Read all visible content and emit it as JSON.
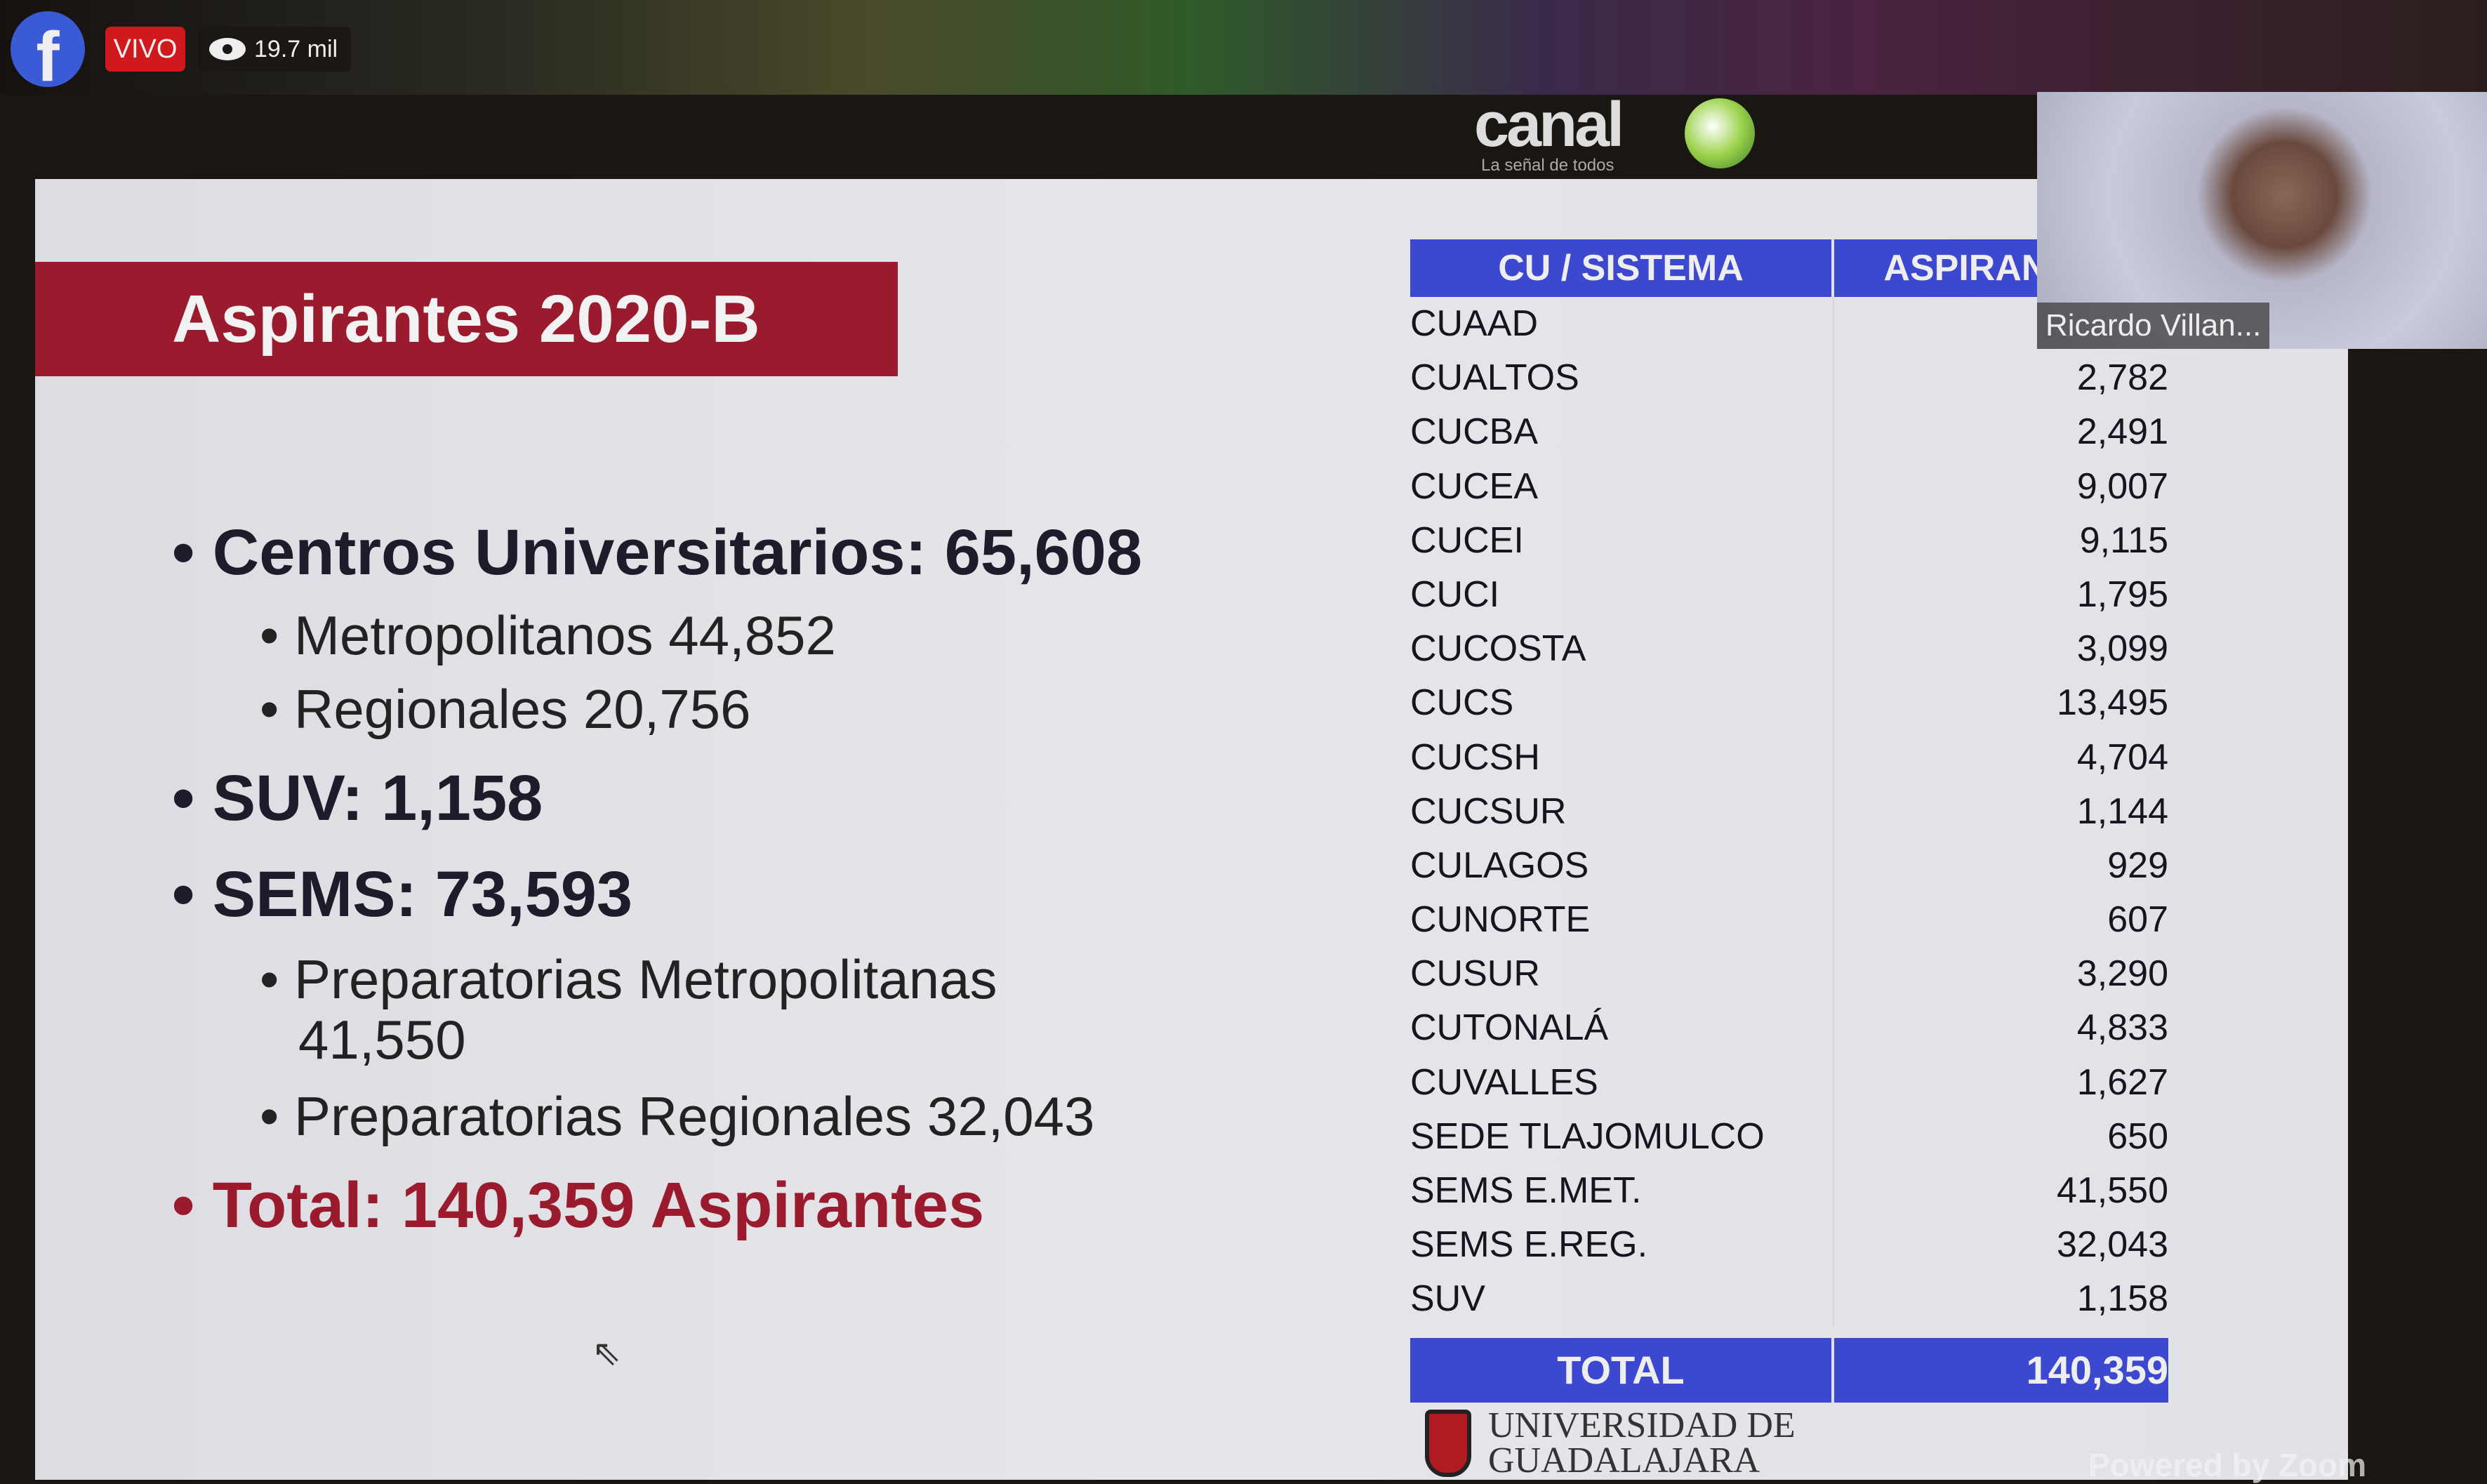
{
  "stream": {
    "live_label": "VIVO",
    "viewers": "19.7 mil",
    "facebook_letter": "f"
  },
  "slide": {
    "title": "Aspirantes 2020-B",
    "bullets": {
      "cu": "Centros Universitarios: 65,608",
      "metro": "Metropolitanos 44,852",
      "regio": "Regionales 20,756",
      "suv": "SUV: 1,158",
      "sems": "SEMS: 73,593",
      "prep_metro": "Preparatorias Metropolitanas",
      "prep_metro_val": "41,550",
      "prep_regio": "Preparatorias Regionales 32,043",
      "total": "Total: 140,359 Aspirantes"
    },
    "table": {
      "headers": [
        "CU / SISTEMA",
        "ASPIRANTES"
      ],
      "rows": [
        [
          "CUAAD",
          ""
        ],
        [
          "CUALTOS",
          "2,782"
        ],
        [
          "CUCBA",
          "2,491"
        ],
        [
          "CUCEA",
          "9,007"
        ],
        [
          "CUCEI",
          "9,115"
        ],
        [
          "CUCI",
          "1,795"
        ],
        [
          "CUCOSTA",
          "3,099"
        ],
        [
          "CUCS",
          "13,495"
        ],
        [
          "CUCSH",
          "4,704"
        ],
        [
          "CUCSUR",
          "1,144"
        ],
        [
          "CULAGOS",
          "929"
        ],
        [
          "CUNORTE",
          "607"
        ],
        [
          "CUSUR",
          "3,290"
        ],
        [
          "CUTONALÁ",
          "4,833"
        ],
        [
          "CUVALLES",
          "1,627"
        ],
        [
          "SEDE TLAJOMULCO",
          "650"
        ],
        [
          "SEMS E.MET.",
          "41,550"
        ],
        [
          "SEMS E.REG.",
          "32,043"
        ],
        [
          "SUV",
          "1,158"
        ]
      ],
      "total_label": "TOTAL",
      "total_value": "140,359"
    }
  },
  "overlays": {
    "canal": "canal",
    "canal_tag": "La señal de todos",
    "udg": "UNIVERSIDAD DE GUADALAJARA",
    "participant": "Ricardo Villan...",
    "powered": "Powered by Zoom"
  }
}
